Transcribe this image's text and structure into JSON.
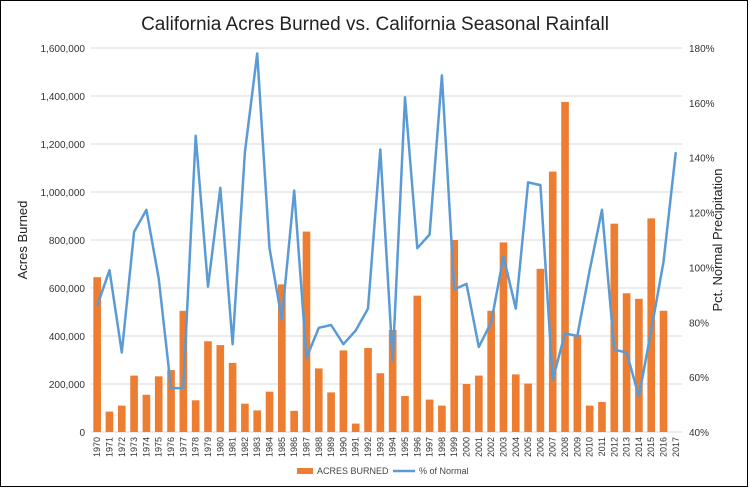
{
  "chart_data": {
    "type": "bar",
    "title": "California Acres Burned vs. California Seasonal Rainfall",
    "ylabel": "Acres Burned",
    "y2label": "Pct. Normal Precipitation",
    "xlabel": "",
    "ylim": [
      0,
      1600000
    ],
    "y2lim": [
      0.4,
      1.8
    ],
    "y_ticks": [
      "0",
      "200,000",
      "400,000",
      "600,000",
      "800,000",
      "1,000,000",
      "1,200,000",
      "1,400,000",
      "1,600,000"
    ],
    "y2_ticks": [
      "40%",
      "60%",
      "80%",
      "100%",
      "120%",
      "140%",
      "160%",
      "180%"
    ],
    "grid": true,
    "legend_position": "bottom",
    "categories": [
      "1970",
      "1971",
      "1972",
      "1973",
      "1974",
      "1975",
      "1976",
      "1977",
      "1978",
      "1979",
      "1980",
      "1981",
      "1982",
      "1983",
      "1984",
      "1985",
      "1986",
      "1987",
      "1988",
      "1989",
      "1990",
      "1991",
      "1992",
      "1993",
      "1994",
      "1995",
      "1996",
      "1997",
      "1998",
      "1999",
      "2000",
      "2001",
      "2002",
      "2003",
      "2004",
      "2005",
      "2006",
      "2007",
      "2008",
      "2009",
      "2010",
      "2011",
      "2012",
      "2013",
      "2014",
      "2015",
      "2016",
      "2017"
    ],
    "series": [
      {
        "name": "ACRES BURNED",
        "type": "bar",
        "axis": "left",
        "color": "#ed7d31",
        "values": [
          645000,
          85000,
          110000,
          235000,
          155000,
          232000,
          258000,
          505000,
          132000,
          378000,
          362000,
          288000,
          118000,
          90000,
          168000,
          615000,
          88000,
          835000,
          265000,
          165000,
          340000,
          35000,
          350000,
          245000,
          425000,
          150000,
          568000,
          135000,
          110000,
          800000,
          200000,
          235000,
          505000,
          790000,
          240000,
          202000,
          680000,
          1085000,
          1375000,
          405000,
          110000,
          125000,
          868000,
          578000,
          555000,
          890000,
          505000,
          0
        ]
      },
      {
        "name": "% of Normal",
        "type": "line",
        "axis": "right",
        "color": "#5b9bd5",
        "values": [
          0.86,
          0.99,
          0.69,
          1.13,
          1.21,
          0.96,
          0.56,
          0.56,
          1.48,
          0.93,
          1.29,
          0.72,
          1.42,
          1.78,
          1.07,
          0.81,
          1.28,
          0.67,
          0.78,
          0.79,
          0.72,
          0.77,
          0.85,
          1.43,
          0.66,
          1.62,
          1.07,
          1.12,
          1.7,
          0.92,
          0.94,
          0.71,
          0.8,
          1.04,
          0.85,
          1.31,
          1.3,
          0.59,
          0.76,
          0.75,
          0.99,
          1.21,
          0.7,
          0.69,
          0.53,
          0.77,
          1.02,
          1.42
        ]
      }
    ]
  }
}
